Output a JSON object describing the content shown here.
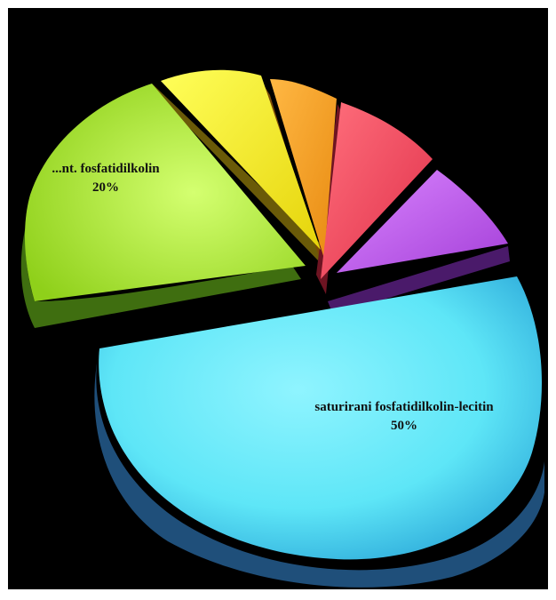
{
  "chart_data": {
    "type": "pie",
    "title": "",
    "style": "3d-exploded",
    "background": "#000000",
    "slices": [
      {
        "label": "saturirani fosfatidilkolin-lecitin",
        "value_label": "50%",
        "value": 50,
        "color": "#5ee6f7"
      },
      {
        "label": "...nt. fosfatidilkolin",
        "value_label": "20%",
        "value": 20,
        "color": "#b8f23a"
      },
      {
        "label": "",
        "value_label": "",
        "value": 8,
        "color": "#f4f21a"
      },
      {
        "label": "",
        "value_label": "",
        "value": 6,
        "color": "#f7a21c"
      },
      {
        "label": "",
        "value_label": "",
        "value": 8,
        "color": "#f5475a"
      },
      {
        "label": "",
        "value_label": "",
        "value": 8,
        "color": "#c45df0"
      }
    ]
  }
}
